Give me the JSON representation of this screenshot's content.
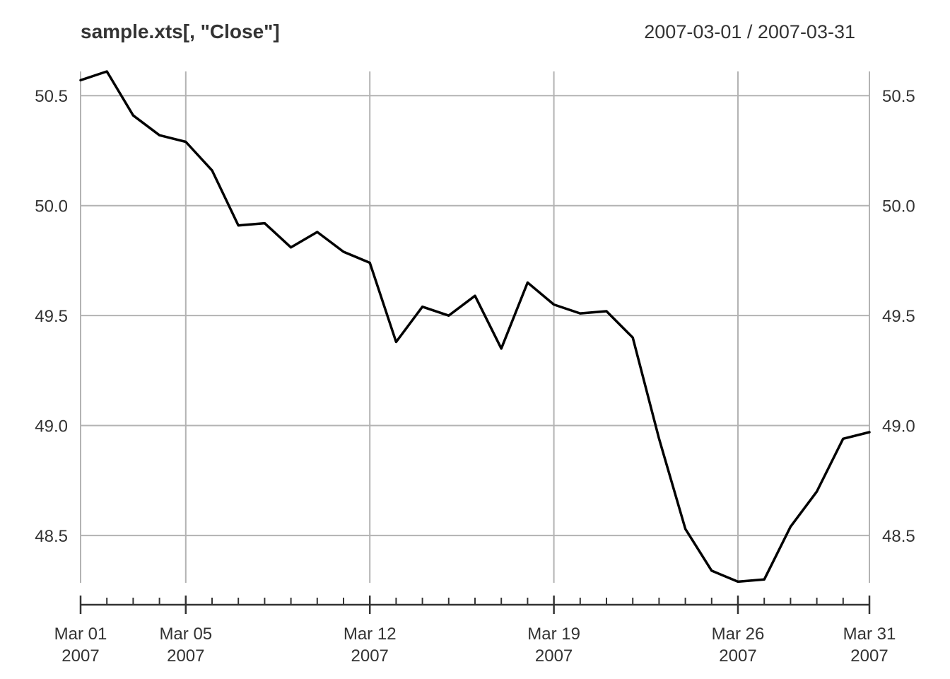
{
  "chart_data": {
    "type": "line",
    "title": "sample.xts[, \"Close\"]",
    "date_range": "2007-03-01 / 2007-03-31",
    "xlabel": "",
    "ylabel": "",
    "ylim": [
      48.285,
      50.61
    ],
    "grid": true,
    "x_ticks": [
      {
        "date": "2007-03-01",
        "label": "Mar 01",
        "year": "2007"
      },
      {
        "date": "2007-03-05",
        "label": "Mar 05",
        "year": "2007"
      },
      {
        "date": "2007-03-12",
        "label": "Mar 12",
        "year": "2007"
      },
      {
        "date": "2007-03-19",
        "label": "Mar 19",
        "year": "2007"
      },
      {
        "date": "2007-03-26",
        "label": "Mar 26",
        "year": "2007"
      },
      {
        "date": "2007-03-31",
        "label": "Mar 31",
        "year": "2007"
      }
    ],
    "y_ticks": [
      "48.5",
      "49.0",
      "49.5",
      "50.0",
      "50.5"
    ],
    "series": [
      {
        "color": "#000000",
        "x": [
          "2007-03-01",
          "2007-03-02",
          "2007-03-03",
          "2007-03-04",
          "2007-03-05",
          "2007-03-06",
          "2007-03-07",
          "2007-03-08",
          "2007-03-09",
          "2007-03-10",
          "2007-03-11",
          "2007-03-12",
          "2007-03-13",
          "2007-03-14",
          "2007-03-15",
          "2007-03-16",
          "2007-03-17",
          "2007-03-18",
          "2007-03-19",
          "2007-03-20",
          "2007-03-21",
          "2007-03-22",
          "2007-03-23",
          "2007-03-24",
          "2007-03-25",
          "2007-03-26",
          "2007-03-27",
          "2007-03-28",
          "2007-03-29",
          "2007-03-30",
          "2007-03-31"
        ],
        "values": [
          50.57,
          50.61,
          50.41,
          50.32,
          50.29,
          50.16,
          49.91,
          49.92,
          49.81,
          49.88,
          49.79,
          49.74,
          49.38,
          49.54,
          49.5,
          49.59,
          49.35,
          49.65,
          49.55,
          49.51,
          49.52,
          49.4,
          48.94,
          48.53,
          48.34,
          48.29,
          48.3,
          48.54,
          48.7,
          48.94,
          48.97
        ]
      }
    ]
  }
}
